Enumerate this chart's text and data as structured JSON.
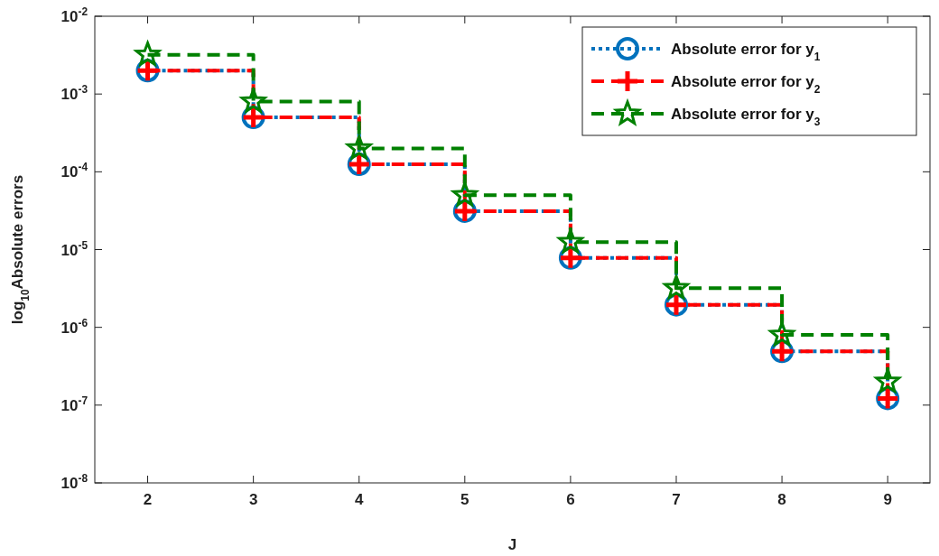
{
  "chart_data": {
    "type": "step",
    "xlabel": "J",
    "ylabel": "log$_{10}$Absolute errors",
    "x": [
      2,
      3,
      4,
      5,
      6,
      7,
      8,
      9
    ],
    "log": true,
    "xlim": [
      1.5,
      9.4
    ],
    "xticks": [
      2,
      3,
      4,
      5,
      6,
      7,
      8,
      9
    ],
    "ylim": [
      1e-08,
      0.01
    ],
    "yticks": [
      {
        "value": 1e-08,
        "label": "10$^{-8}$"
      },
      {
        "value": 1e-07,
        "label": "10$^{-7}$"
      },
      {
        "value": 1e-06,
        "label": "10$^{-6}$"
      },
      {
        "value": 1e-05,
        "label": "10$^{-5}$"
      },
      {
        "value": 0.0001,
        "label": "10$^{-4}$"
      },
      {
        "value": 0.001,
        "label": "10$^{-3}$"
      },
      {
        "value": 0.01,
        "label": "10$^{-2}$"
      }
    ],
    "grid": false,
    "legend": "top right",
    "series": [
      {
        "name": "Absolute error for  y$_{1}$",
        "color": "#0072bd",
        "marker": "circle",
        "line_style": "dotted",
        "values": [
          0.002,
          0.0005,
          0.000125,
          3.12e-05,
          7.8e-06,
          1.95e-06,
          4.9e-07,
          1.22e-07
        ]
      },
      {
        "name": "Absolute error for  y$_{2}$",
        "color": "#ff0000",
        "marker": "cross",
        "line_style": "dashed",
        "values": [
          0.002,
          0.0005,
          0.000125,
          3.12e-05,
          7.8e-06,
          1.95e-06,
          4.9e-07,
          1.22e-07
        ]
      },
      {
        "name": "Absolute error for  y$_{3}$",
        "color": "#008000",
        "marker": "star",
        "line_style": "dashed",
        "values": [
          0.0032,
          0.0008,
          0.0002,
          5e-05,
          1.25e-05,
          3.2e-06,
          8e-07,
          2e-07
        ]
      }
    ]
  }
}
